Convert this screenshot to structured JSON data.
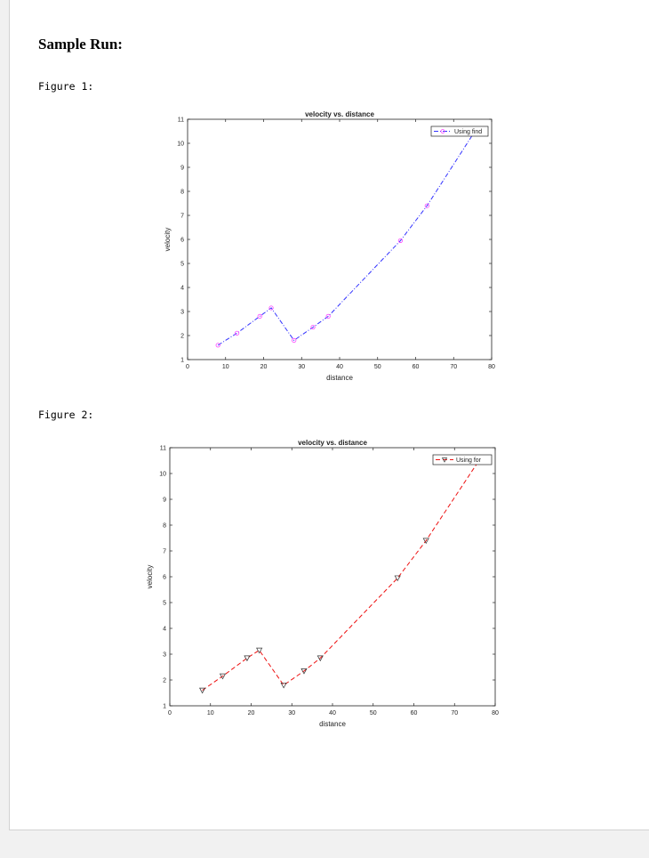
{
  "heading": "Sample Run:",
  "figure_labels": [
    "Figure 1:",
    "Figure 2:"
  ],
  "chart_data": [
    {
      "type": "line",
      "title": "velocity vs. distance",
      "xlabel": "distance",
      "ylabel": "velocity",
      "xlim": [
        0,
        80
      ],
      "ylim": [
        1,
        11
      ],
      "xticks": [
        0,
        10,
        20,
        30,
        40,
        50,
        60,
        70,
        80
      ],
      "yticks": [
        1,
        2,
        3,
        4,
        5,
        6,
        7,
        8,
        9,
        10,
        11
      ],
      "grid": false,
      "legend_position": "top-right",
      "series": [
        {
          "name": "Using find",
          "color": "#3333ff",
          "marker_color": "#ff44ff",
          "line_style": "dash-dot",
          "marker": "circle",
          "x": [
            8,
            13,
            19,
            22,
            28,
            33,
            37,
            56,
            63,
            76
          ],
          "y": [
            1.6,
            2.1,
            2.8,
            3.15,
            1.8,
            2.35,
            2.8,
            5.95,
            7.4,
            10.6
          ]
        }
      ]
    },
    {
      "type": "line",
      "title": "velocity vs. distance",
      "xlabel": "distance",
      "ylabel": "velocity",
      "xlim": [
        0,
        80
      ],
      "ylim": [
        1,
        11
      ],
      "xticks": [
        0,
        10,
        20,
        30,
        40,
        50,
        60,
        70,
        80
      ],
      "yticks": [
        1,
        2,
        3,
        4,
        5,
        6,
        7,
        8,
        9,
        10,
        11
      ],
      "grid": false,
      "legend_position": "top-right",
      "series": [
        {
          "name": "Using for",
          "color": "#ee1111",
          "marker_color": "#333333",
          "line_style": "dashed",
          "marker": "triangle-down",
          "x": [
            8,
            13,
            19,
            22,
            28,
            33,
            37,
            56,
            63,
            76
          ],
          "y": [
            1.6,
            2.15,
            2.85,
            3.15,
            1.8,
            2.35,
            2.85,
            5.95,
            7.4,
            10.5
          ]
        }
      ]
    }
  ]
}
